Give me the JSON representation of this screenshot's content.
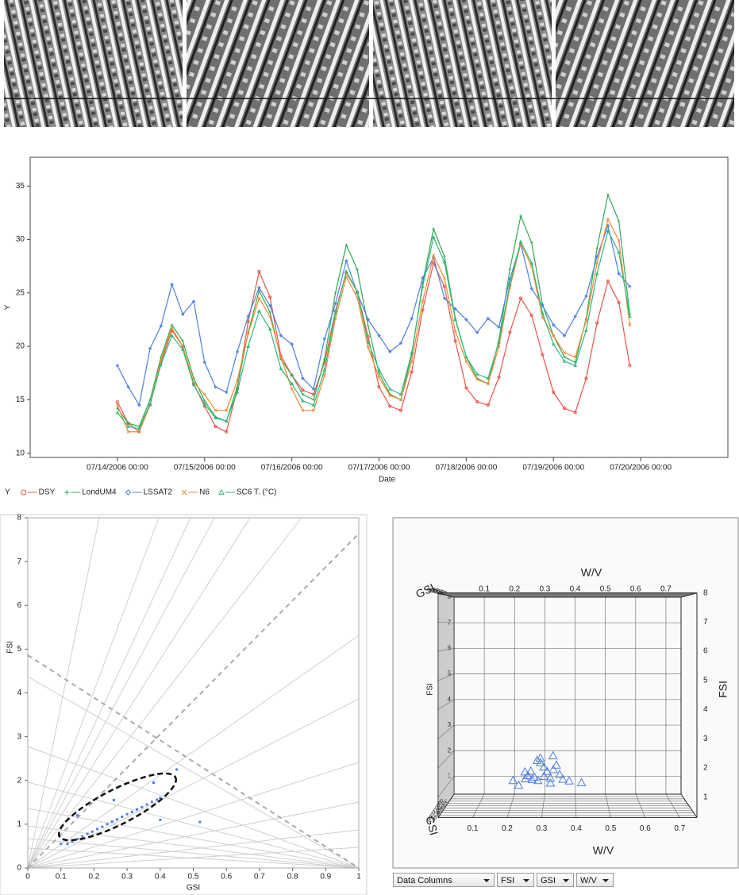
{
  "chart_data": [
    {
      "type": "line",
      "xlabel": "Date",
      "ylabel": "Y",
      "legend_title": "Y",
      "x": [
        "2006-07-14T00:00",
        "2006-07-14T03:00",
        "2006-07-14T06:00",
        "2006-07-14T09:00",
        "2006-07-14T12:00",
        "2006-07-14T15:00",
        "2006-07-14T18:00",
        "2006-07-14T21:00",
        "2006-07-15T00:00",
        "2006-07-15T03:00",
        "2006-07-15T06:00",
        "2006-07-15T09:00",
        "2006-07-15T12:00",
        "2006-07-15T15:00",
        "2006-07-15T18:00",
        "2006-07-15T21:00",
        "2006-07-16T00:00",
        "2006-07-16T03:00",
        "2006-07-16T06:00",
        "2006-07-16T09:00",
        "2006-07-16T12:00",
        "2006-07-16T15:00",
        "2006-07-16T18:00",
        "2006-07-16T21:00",
        "2006-07-17T00:00",
        "2006-07-17T03:00",
        "2006-07-17T06:00",
        "2006-07-17T09:00",
        "2006-07-17T12:00",
        "2006-07-17T15:00",
        "2006-07-17T18:00",
        "2006-07-17T21:00",
        "2006-07-18T00:00",
        "2006-07-18T03:00",
        "2006-07-18T06:00",
        "2006-07-18T09:00",
        "2006-07-18T12:00",
        "2006-07-18T15:00",
        "2006-07-18T18:00",
        "2006-07-18T21:00",
        "2006-07-19T00:00",
        "2006-07-19T03:00",
        "2006-07-19T06:00",
        "2006-07-19T09:00",
        "2006-07-19T12:00",
        "2006-07-19T15:00",
        "2006-07-19T18:00",
        "2006-07-19T21:00"
      ],
      "series": [
        {
          "name": "DSY",
          "color": "#e8534a",
          "marker": "circle",
          "values": [
            14.8,
            12.8,
            12,
            14.5,
            18.5,
            21.5,
            20,
            16.5,
            14.4,
            12.5,
            12,
            16,
            22.3,
            27,
            24.6,
            19.1,
            17.3,
            15.9,
            15.5,
            18.5,
            23.3,
            26.9,
            25.1,
            20.9,
            16.2,
            14.4,
            14,
            17.6,
            23.4,
            27.8,
            25.6,
            20.5,
            16.1,
            14.8,
            14.5,
            17.1,
            21.3,
            24.5,
            22.9,
            19.2,
            15.7,
            14.2,
            13.8,
            17,
            22.2,
            26.1,
            24.1,
            18.2
          ]
        },
        {
          "name": "LondUM4",
          "color": "#33a853",
          "marker": "plus",
          "values": [
            14.2,
            12.8,
            12.5,
            15,
            19,
            22,
            20.5,
            17,
            14.9,
            13.4,
            13,
            16.2,
            21.3,
            25.2,
            23.2,
            18.8,
            17.3,
            15.5,
            15,
            18.8,
            25,
            29.5,
            27.2,
            21.9,
            17.5,
            15.5,
            15,
            19.2,
            25.9,
            31,
            28.4,
            22.6,
            19,
            17,
            16.5,
            20.6,
            27.2,
            32.2,
            29.7,
            23.9,
            21,
            19,
            18.5,
            22.6,
            29.2,
            34.2,
            31.7,
            23
          ]
        },
        {
          "name": "LSSAT2",
          "color": "#4d7fe0",
          "marker": "diamond",
          "values": [
            18.2,
            16.2,
            14.5,
            19.8,
            21.9,
            25.8,
            23,
            24.2,
            18.5,
            16.2,
            15.7,
            19.5,
            22.8,
            25.5,
            23.8,
            21,
            20.2,
            17,
            16,
            20.7,
            24,
            28,
            25,
            22.5,
            21,
            19.5,
            20.3,
            22.6,
            26.4,
            28.3,
            24.5,
            23.5,
            22.5,
            21.3,
            22.6,
            21.8,
            26.3,
            29.6,
            25.4,
            23.8,
            22,
            21,
            22.8,
            24.7,
            28.4,
            31.3,
            26.8,
            25.6
          ]
        },
        {
          "name": "N6",
          "color": "#f0892c",
          "marker": "cross",
          "values": [
            14.5,
            12,
            12,
            14.5,
            18.7,
            21.7,
            20,
            16.6,
            15.5,
            14,
            14,
            16.8,
            21.2,
            24.5,
            22.8,
            19,
            16,
            14,
            14,
            17.3,
            22.6,
            26.5,
            24.6,
            19.9,
            17.1,
            15.4,
            15,
            18.6,
            24.2,
            28.5,
            26.4,
            21.4,
            18.6,
            16.9,
            16.5,
            20,
            25.5,
            29.6,
            27.5,
            22.7,
            21,
            19.4,
            19,
            22.4,
            27.8,
            31.9,
            29.9,
            22
          ]
        },
        {
          "name": "SC6  T. (°C)",
          "color": "#2fb87a",
          "marker": "triangle",
          "values": [
            13.8,
            12.5,
            12.3,
            14.6,
            18.3,
            21,
            19.7,
            16.4,
            14.6,
            13.3,
            13,
            15.7,
            20,
            23.3,
            21.6,
            17.9,
            16.5,
            14.9,
            14.5,
            17.8,
            23.1,
            27,
            25.1,
            20.4,
            17.8,
            16,
            15.5,
            19.4,
            25.6,
            30.2,
            27.9,
            22.5,
            19,
            17.4,
            17,
            20.4,
            25.8,
            29.8,
            27.8,
            23.1,
            20.2,
            18.6,
            18.2,
            21.5,
            26.8,
            30.8,
            28.8,
            22.8
          ]
        }
      ],
      "xlim": [
        "2006-07-13T00:00",
        "2006-07-21T00:00"
      ],
      "xticks": [
        {
          "value": "2006-07-14T00:00",
          "label": "07/14/2006 00:00"
        },
        {
          "value": "2006-07-15T00:00",
          "label": "07/15/2006 00:00"
        },
        {
          "value": "2006-07-16T00:00",
          "label": "07/16/2006 00:00"
        },
        {
          "value": "2006-07-17T00:00",
          "label": "07/17/2006 00:00"
        },
        {
          "value": "2006-07-18T00:00",
          "label": "07/18/2006 00:00"
        },
        {
          "value": "2006-07-19T00:00",
          "label": "07/19/2006 00:00"
        },
        {
          "value": "2006-07-20T00:00",
          "label": "07/20/2006 00:00"
        }
      ],
      "ylim": [
        9.6,
        37.7
      ],
      "yticks": [
        10,
        15,
        20,
        25,
        30,
        35
      ]
    },
    {
      "type": "scatter",
      "xlabel": "GSI",
      "ylabel": "FSI",
      "color": "#4d7fe0",
      "x": [
        0.12,
        0.135,
        0.15,
        0.165,
        0.18,
        0.195,
        0.21,
        0.225,
        0.24,
        0.255,
        0.27,
        0.285,
        0.3,
        0.315,
        0.33,
        0.345,
        0.36,
        0.375,
        0.39,
        0.4,
        0.45,
        0.38,
        0.26,
        0.4,
        0.52,
        0.15,
        0.1
      ],
      "y": [
        0.55,
        0.61,
        0.66,
        0.72,
        0.78,
        0.83,
        0.89,
        0.94,
        1.0,
        1.06,
        1.11,
        1.17,
        1.23,
        1.28,
        1.34,
        1.39,
        1.45,
        1.51,
        1.56,
        1.6,
        2.25,
        1.95,
        1.55,
        1.1,
        1.05,
        1.2,
        0.55
      ],
      "xlim": [
        0,
        1
      ],
      "xticks": [
        0,
        0.1,
        0.2,
        0.3,
        0.4,
        0.5,
        0.6,
        0.7,
        0.8,
        0.9,
        1
      ],
      "ylim": [
        0,
        8
      ],
      "yticks": [
        0,
        1,
        2,
        3,
        4,
        5,
        6,
        7,
        8
      ]
    },
    {
      "type": "scatter3d",
      "xlabel": "W/V",
      "ylabel": "FSI",
      "zlabel": "GSI",
      "color": "#4d7fe0",
      "x": [
        0.2,
        0.22,
        0.24,
        0.25,
        0.26,
        0.27,
        0.28,
        0.29,
        0.3,
        0.31,
        0.32,
        0.33,
        0.34,
        0.35,
        0.28,
        0.26,
        0.3,
        0.32,
        0.24,
        0.36,
        0.38,
        0.42,
        0.29,
        0.33
      ],
      "y": [
        1.0,
        0.9,
        1.1,
        1.3,
        1.5,
        1.2,
        1.0,
        1.8,
        1.6,
        1.4,
        1.1,
        2.1,
        1.7,
        1.3,
        1.9,
        1.0,
        1.2,
        0.9,
        1.4,
        1.1,
        1.0,
        0.9,
        2.0,
        1.5
      ],
      "z": [
        0.2,
        0.3,
        0.25,
        0.35,
        0.4,
        0.3,
        0.2,
        0.38,
        0.33,
        0.28,
        0.22,
        0.45,
        0.36,
        0.3,
        0.4,
        0.15,
        0.25,
        0.2,
        0.3,
        0.27,
        0.22,
        0.18,
        0.42,
        0.32
      ],
      "xlim": [
        0,
        0.75
      ],
      "xticks": [
        0.1,
        0.2,
        0.3,
        0.4,
        0.5,
        0.6,
        0.7
      ],
      "ylim": [
        0.3,
        8
      ],
      "yticks": [
        1,
        2,
        3,
        4,
        5,
        6,
        7,
        8
      ],
      "zlim": [
        0,
        1
      ],
      "zticks": [
        0.1,
        0.2,
        0.3,
        0.4,
        0.5,
        0.6,
        0.7,
        0.8,
        0.9
      ]
    }
  ],
  "controls": [
    "Data Columns",
    "FSI",
    "GSI",
    "W/V"
  ]
}
